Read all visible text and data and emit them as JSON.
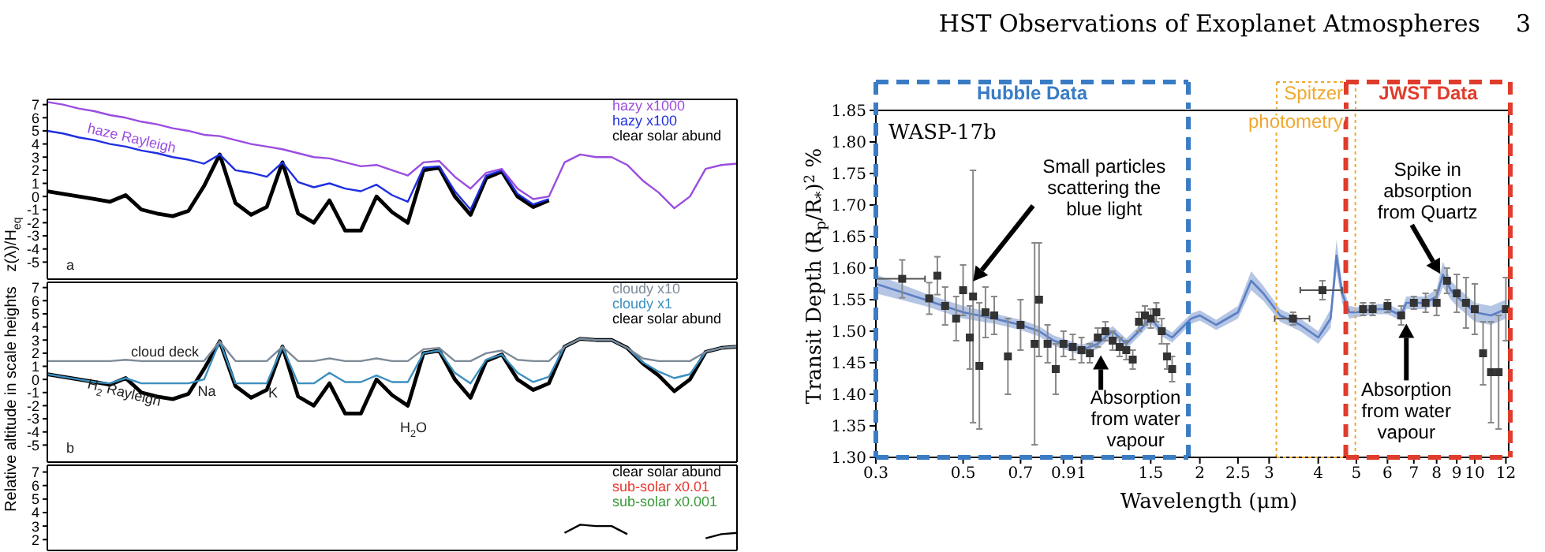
{
  "chart_data": [
    {
      "type": "line",
      "ylabel": "z(λ)/H$_{eq}$",
      "categories": [
        null,
        null,
        null,
        null,
        null,
        null,
        null,
        null,
        null,
        null,
        null,
        null,
        null,
        null,
        null,
        null,
        null,
        null,
        null,
        null,
        null,
        null,
        null,
        null,
        null,
        null,
        null,
        null,
        null,
        null,
        null,
        null,
        null,
        null,
        null,
        null,
        null,
        null,
        null,
        null,
        null,
        null,
        null,
        null,
        null
      ],
      "ylim": [
        -6.3,
        7.4
      ],
      "yticks": [
        -5,
        -4,
        -3,
        -2,
        -1,
        0,
        1,
        2,
        3,
        4,
        5,
        6,
        7
      ],
      "tick_labels": "y",
      "legend": "top right",
      "series": [
        {
          "name": "hazy x1000",
          "color": "#9b4de0",
          "values": [
            7.2,
            7.0,
            6.7,
            6.5,
            6.2,
            6.0,
            5.7,
            5.5,
            5.2,
            5.0,
            4.7,
            4.6,
            4.3,
            4.0,
            3.8,
            3.6,
            3.3,
            3.0,
            2.9,
            2.6,
            2.3,
            2.4,
            2.0,
            1.6,
            2.6,
            2.7,
            1.5,
            0.6,
            1.8,
            2.1,
            0.6,
            -0.2,
            0.0,
            2.6,
            3.2,
            3.0,
            3.0,
            2.4,
            1.2,
            0.3,
            -0.9,
            0.0,
            2.1,
            2.4,
            2.5
          ]
        },
        {
          "name": "hazy x100",
          "color": "#1f2fe0",
          "values": [
            5.0,
            4.8,
            4.5,
            4.3,
            4.0,
            3.8,
            3.5,
            3.3,
            3.0,
            2.8,
            2.5,
            3.2,
            2.0,
            1.8,
            1.5,
            2.6,
            1.1,
            0.7,
            1.0,
            0.6,
            0.4,
            0.9,
            0.1,
            -0.4,
            2.2,
            2.3,
            0.4,
            -1.0,
            1.6,
            2.0,
            0.2,
            -0.6,
            -0.2,
            null,
            null,
            null,
            null,
            null,
            null,
            null,
            null,
            null,
            null,
            null,
            null
          ]
        },
        {
          "name": "clear solar abund",
          "color": "#000000",
          "values": [
            0.4,
            0.2,
            0.0,
            -0.2,
            -0.4,
            0.1,
            -1.0,
            -1.3,
            -1.5,
            -1.1,
            0.8,
            3.2,
            -0.5,
            -1.4,
            -0.8,
            2.6,
            -1.3,
            -2.0,
            -0.3,
            -2.6,
            -2.6,
            0.0,
            -1.2,
            -2.0,
            2.0,
            2.2,
            0.0,
            -1.4,
            1.4,
            1.9,
            0.0,
            -0.8,
            -0.3,
            null,
            null,
            null,
            null,
            null,
            null,
            null,
            null,
            null,
            null,
            null,
            null
          ]
        }
      ],
      "annotations": [
        "haze Rayleigh",
        "a"
      ]
    },
    {
      "type": "line",
      "ylabel": "Relative altitude in scale heights",
      "categories": [
        null,
        null,
        null,
        null,
        null,
        null,
        null,
        null,
        null,
        null,
        null,
        null,
        null,
        null,
        null,
        null,
        null,
        null,
        null,
        null,
        null,
        null,
        null,
        null,
        null,
        null,
        null,
        null,
        null,
        null,
        null,
        null,
        null,
        null,
        null,
        null,
        null,
        null,
        null,
        null,
        null,
        null,
        null,
        null,
        null
      ],
      "ylim": [
        -6.3,
        7.4
      ],
      "yticks": [
        -5,
        -4,
        -3,
        -2,
        -1,
        0,
        1,
        2,
        3,
        4,
        5,
        6,
        7
      ],
      "tick_labels": "y",
      "legend": "top right",
      "series": [
        {
          "name": "cloudy x10",
          "color": "#7d8a99",
          "values": [
            1.4,
            1.4,
            1.4,
            1.4,
            1.4,
            1.5,
            1.4,
            1.4,
            1.4,
            1.4,
            1.4,
            2.9,
            1.4,
            1.4,
            1.4,
            2.5,
            1.4,
            1.4,
            1.6,
            1.4,
            1.4,
            1.6,
            1.4,
            1.4,
            2.3,
            2.4,
            1.4,
            1.4,
            2.0,
            2.2,
            1.5,
            1.4,
            1.4,
            2.5,
            3.1,
            3.0,
            3.0,
            2.4,
            1.6,
            1.4,
            1.4,
            1.4,
            2.1,
            2.4,
            2.5
          ]
        },
        {
          "name": "cloudy x1",
          "color": "#3b8fbf",
          "values": [
            0.4,
            0.2,
            0.0,
            -0.2,
            -0.3,
            0.1,
            -0.3,
            -0.3,
            -0.3,
            -0.3,
            0.0,
            2.9,
            -0.3,
            -0.3,
            -0.3,
            2.5,
            -0.3,
            -0.3,
            0.5,
            -0.2,
            -0.2,
            0.3,
            -0.2,
            -0.2,
            2.0,
            2.2,
            0.5,
            -0.3,
            1.5,
            1.9,
            0.5,
            -0.2,
            0.2,
            2.5,
            3.1,
            3.0,
            3.0,
            2.4,
            1.3,
            0.6,
            0.1,
            0.4,
            2.1,
            2.4,
            2.5
          ]
        },
        {
          "name": "clear solar abund",
          "color": "#000000",
          "values": [
            0.4,
            0.2,
            0.0,
            -0.2,
            -0.4,
            0.1,
            -1.0,
            -1.3,
            -1.5,
            -1.1,
            0.8,
            2.9,
            -0.5,
            -1.4,
            -0.8,
            2.5,
            -1.3,
            -2.0,
            -0.3,
            -2.6,
            -2.6,
            0.0,
            -1.2,
            -2.0,
            2.0,
            2.2,
            0.0,
            -1.4,
            1.4,
            1.9,
            0.0,
            -0.8,
            -0.3,
            2.5,
            3.1,
            3.0,
            3.0,
            2.4,
            1.2,
            0.3,
            -0.9,
            0.0,
            2.1,
            2.4,
            2.5
          ]
        }
      ],
      "annotations": [
        "cloud deck",
        "H$_{2}$ Rayleigh",
        "Na",
        "K",
        "H$_{2}$O",
        "b"
      ]
    },
    {
      "type": "line",
      "categories": [
        null,
        null,
        null,
        null,
        null,
        null,
        null,
        null,
        null,
        null,
        null,
        null,
        null,
        null,
        null,
        null,
        null,
        null,
        null,
        null,
        null,
        null,
        null,
        null,
        null,
        null,
        null,
        null,
        null,
        null,
        null,
        null,
        null,
        null,
        null,
        null,
        null,
        null,
        null,
        null,
        null,
        null,
        null,
        null,
        null
      ],
      "ylim": [
        1.2,
        7.5
      ],
      "yticks": [
        2,
        3,
        4,
        5,
        6,
        7
      ],
      "tick_labels": "y",
      "legend": "top right",
      "series": [
        {
          "name": "clear solar abund",
          "color": "#000000",
          "values": [
            null,
            null,
            null,
            null,
            null,
            null,
            null,
            null,
            null,
            null,
            null,
            null,
            null,
            null,
            null,
            null,
            null,
            null,
            null,
            null,
            null,
            null,
            null,
            null,
            null,
            null,
            null,
            null,
            null,
            null,
            null,
            null,
            null,
            2.5,
            3.1,
            3.0,
            3.0,
            2.4,
            null,
            null,
            null,
            null,
            2.1,
            2.4,
            2.5
          ]
        },
        {
          "name": "sub-solar x0.01",
          "color": "#e8342a",
          "values": [
            null,
            null,
            null,
            null,
            null,
            null,
            null,
            null,
            null,
            null,
            null,
            null,
            null,
            null,
            null,
            null,
            null,
            null,
            null,
            null,
            null,
            null,
            null,
            null,
            null,
            null,
            null,
            null,
            null,
            null,
            null,
            null,
            null,
            null,
            null,
            null,
            null,
            null,
            null,
            null,
            null,
            null,
            null,
            null,
            null
          ]
        },
        {
          "name": "sub-solar x0.001",
          "color": "#3a9a3a",
          "values": [
            null,
            null,
            null,
            null,
            null,
            null,
            null,
            null,
            null,
            null,
            null,
            null,
            null,
            null,
            null,
            null,
            null,
            null,
            null,
            null,
            null,
            null,
            null,
            null,
            null,
            null,
            null,
            null,
            null,
            null,
            null,
            null,
            null,
            null,
            null,
            null,
            null,
            null,
            null,
            null,
            null,
            null,
            null,
            null,
            null
          ]
        }
      ]
    },
    {
      "type": "scatter",
      "xlabel": "Wavelength (μm)",
      "ylabel": "Transit Depth (R$_{p}$/R$_{*}$)$^{2}$ %",
      "log": "x",
      "xlim": [
        0.3,
        12.2
      ],
      "xticks": [
        0.3,
        0.5,
        0.7,
        0.9,
        1,
        1.5,
        2,
        2.5,
        3,
        4,
        5,
        6,
        7,
        8,
        9,
        10,
        12
      ],
      "ylim": [
        1.3,
        1.85
      ],
      "ref_lines": [
        {
          "axis": "x",
          "value": 1.87,
          "color": "#3a7cc4",
          "line_style": "dashed"
        },
        {
          "axis": "x",
          "value": 3.13,
          "color": "#f0a830",
          "line_style": "dotted"
        },
        {
          "axis": "x",
          "value": 4.97,
          "color": "#f0a830",
          "line_style": "dotted"
        },
        {
          "axis": "x",
          "value": 4.7,
          "color": "#e03c2c",
          "line_style": "dashed"
        }
      ],
      "yticks": [
        {
          "value": 1.3,
          "label": "1.30"
        },
        1.35,
        {
          "value": 1.4,
          "label": "1.40"
        },
        1.45,
        {
          "value": 1.5,
          "label": "1.50"
        },
        1.55,
        {
          "value": 1.6,
          "label": "1.60"
        },
        1.65,
        {
          "value": 1.7,
          "label": "1.70"
        },
        1.75,
        {
          "value": 1.8,
          "label": "1.80"
        },
        1.85
      ],
      "series": [
        {
          "type": "line",
          "color": "#5b7fc4",
          "x": [
            0.3,
            0.4,
            0.5,
            0.6,
            0.7,
            0.78,
            0.85,
            0.9,
            1.0,
            1.1,
            1.2,
            1.3,
            1.4,
            1.5,
            1.6,
            1.7,
            1.9,
            2.0,
            2.2,
            2.5,
            2.7,
            2.9,
            3.2,
            3.6,
            4.0,
            4.3,
            4.45,
            4.6,
            4.8,
            5.0,
            5.5,
            6.0,
            6.5,
            6.7,
            7.0,
            7.5,
            8.0,
            8.3,
            8.7,
            9.0,
            10,
            11,
            12
          ],
          "values": [
            1.575,
            1.55,
            1.53,
            1.52,
            1.51,
            1.5,
            1.485,
            1.48,
            1.47,
            1.48,
            1.5,
            1.48,
            1.5,
            1.52,
            1.5,
            1.49,
            1.52,
            1.525,
            1.51,
            1.53,
            1.58,
            1.56,
            1.525,
            1.51,
            1.49,
            1.52,
            1.62,
            1.56,
            1.53,
            1.53,
            1.535,
            1.535,
            1.525,
            1.545,
            1.545,
            1.545,
            1.555,
            1.59,
            1.565,
            1.555,
            1.53,
            1.525,
            1.535
          ],
          "lower": [
            1.56,
            1.54,
            1.52,
            1.512,
            1.502,
            1.492,
            1.477,
            1.472,
            1.462,
            1.472,
            1.492,
            1.472,
            1.492,
            1.512,
            1.492,
            1.482,
            1.512,
            1.517,
            1.502,
            1.52,
            1.565,
            1.548,
            1.515,
            1.5,
            1.48,
            1.505,
            1.595,
            1.545,
            1.52,
            1.522,
            1.527,
            1.527,
            1.517,
            1.535,
            1.535,
            1.535,
            1.543,
            1.57,
            1.55,
            1.54,
            1.515,
            1.51,
            1.52
          ],
          "upper": [
            1.59,
            1.56,
            1.54,
            1.528,
            1.518,
            1.508,
            1.493,
            1.488,
            1.478,
            1.488,
            1.508,
            1.488,
            1.508,
            1.528,
            1.508,
            1.498,
            1.528,
            1.533,
            1.518,
            1.54,
            1.595,
            1.572,
            1.535,
            1.52,
            1.5,
            1.535,
            1.645,
            1.575,
            1.54,
            1.538,
            1.543,
            1.543,
            1.533,
            1.555,
            1.555,
            1.555,
            1.567,
            1.61,
            1.58,
            1.57,
            1.545,
            1.54,
            1.55
          ]
        },
        {
          "color": "#333333",
          "marker": "square",
          "x": [
            0.35,
            0.41,
            0.43,
            0.45,
            0.48,
            0.5,
            0.52,
            0.53,
            0.55,
            0.57,
            0.6,
            0.65,
            0.7,
            0.76,
            0.78,
            0.82,
            0.86,
            0.9,
            0.95,
            1.0,
            1.05,
            1.1,
            1.15,
            1.2,
            1.25,
            1.3,
            1.35,
            1.4,
            1.45,
            1.5,
            1.55,
            1.6,
            1.65,
            1.7,
            3.45,
            4.1,
            5.2,
            5.5,
            6.0,
            6.5,
            7.0,
            7.5,
            8.0,
            8.5,
            9.0,
            9.5,
            10.0,
            10.5,
            11.0,
            11.5,
            12.0
          ],
          "values": [
            1.583,
            1.552,
            1.588,
            1.54,
            1.52,
            1.565,
            1.49,
            1.555,
            1.445,
            1.53,
            1.525,
            1.46,
            1.51,
            1.48,
            1.55,
            1.48,
            1.44,
            1.48,
            1.475,
            1.47,
            1.465,
            1.49,
            1.5,
            1.485,
            1.475,
            1.47,
            1.455,
            1.515,
            1.525,
            1.52,
            1.53,
            1.5,
            1.46,
            1.44,
            1.52,
            1.565,
            1.535,
            1.535,
            1.54,
            1.525,
            1.545,
            1.545,
            1.545,
            1.58,
            1.56,
            1.545,
            1.535,
            1.465,
            1.435,
            1.435,
            1.535
          ],
          "errors": [
            0.03,
            0.025,
            0.03,
            0.03,
            0.035,
            0.04,
            0.05,
            0.2,
            0.1,
            0.04,
            0.03,
            0.06,
            0.04,
            0.16,
            0.09,
            0.03,
            0.04,
            0.02,
            0.02,
            0.02,
            0.015,
            0.015,
            0.015,
            0.015,
            0.015,
            0.015,
            0.015,
            0.015,
            0.015,
            0.015,
            0.015,
            0.02,
            0.02,
            0.02,
            0.01,
            0.015,
            0.01,
            0.01,
            0.01,
            0.015,
            0.01,
            0.015,
            0.02,
            0.02,
            0.03,
            0.04,
            0.04,
            0.05,
            0.08,
            0.09,
            0.05
          ],
          "xerrors": [
            0.05,
            null,
            null,
            null,
            null,
            null,
            null,
            null,
            null,
            null,
            null,
            null,
            null,
            null,
            null,
            null,
            null,
            null,
            null,
            null,
            null,
            null,
            null,
            null,
            null,
            null,
            null,
            null,
            null,
            null,
            null,
            null,
            null,
            null,
            0.35,
            0.5,
            null,
            null,
            null,
            null,
            null,
            null,
            null,
            null,
            null,
            null,
            null,
            null,
            null,
            null,
            null
          ]
        }
      ],
      "annotations": [
        "HST Observations of Exoplanet Atmospheres",
        "3",
        "WASP-17b",
        "Hubble Data",
        "Spitzer photometry",
        "JWST Data",
        {
          "text": "Small particles scattering the blue light",
          "x": 0.53,
          "y": 1.579
        },
        {
          "text": "Absorption from water vapour",
          "x": 1.12,
          "y": 1.462
        },
        {
          "text": "Absorption from water vapour",
          "x": 6.7,
          "y": 1.512
        },
        {
          "text": "Spike in absorption from Quartz",
          "x": 8.17,
          "y": 1.591
        }
      ]
    }
  ]
}
